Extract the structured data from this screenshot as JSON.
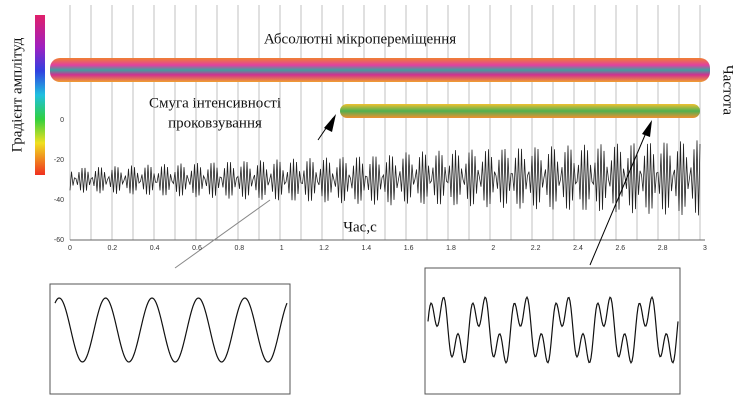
{
  "chart_data": {
    "type": "vibration-figure",
    "colorbar_label": "Градієнт амплітуд",
    "band_label": "Абсолютні мікропереміщення",
    "slip_label_1": "Смуга інтенсивності",
    "slip_label_2": "проковзування",
    "right_label": "Частота",
    "x_label": "Час,с",
    "xticks": [
      "0",
      "0.2",
      "0.4",
      "0.6",
      "0.8",
      "1",
      "1.2",
      "1.4",
      "1.6",
      "1.8",
      "2",
      "2.2",
      "2.4",
      "2.6",
      "2.8",
      "3"
    ],
    "yticks": [
      "0",
      "-20",
      "-40",
      "-60"
    ]
  }
}
